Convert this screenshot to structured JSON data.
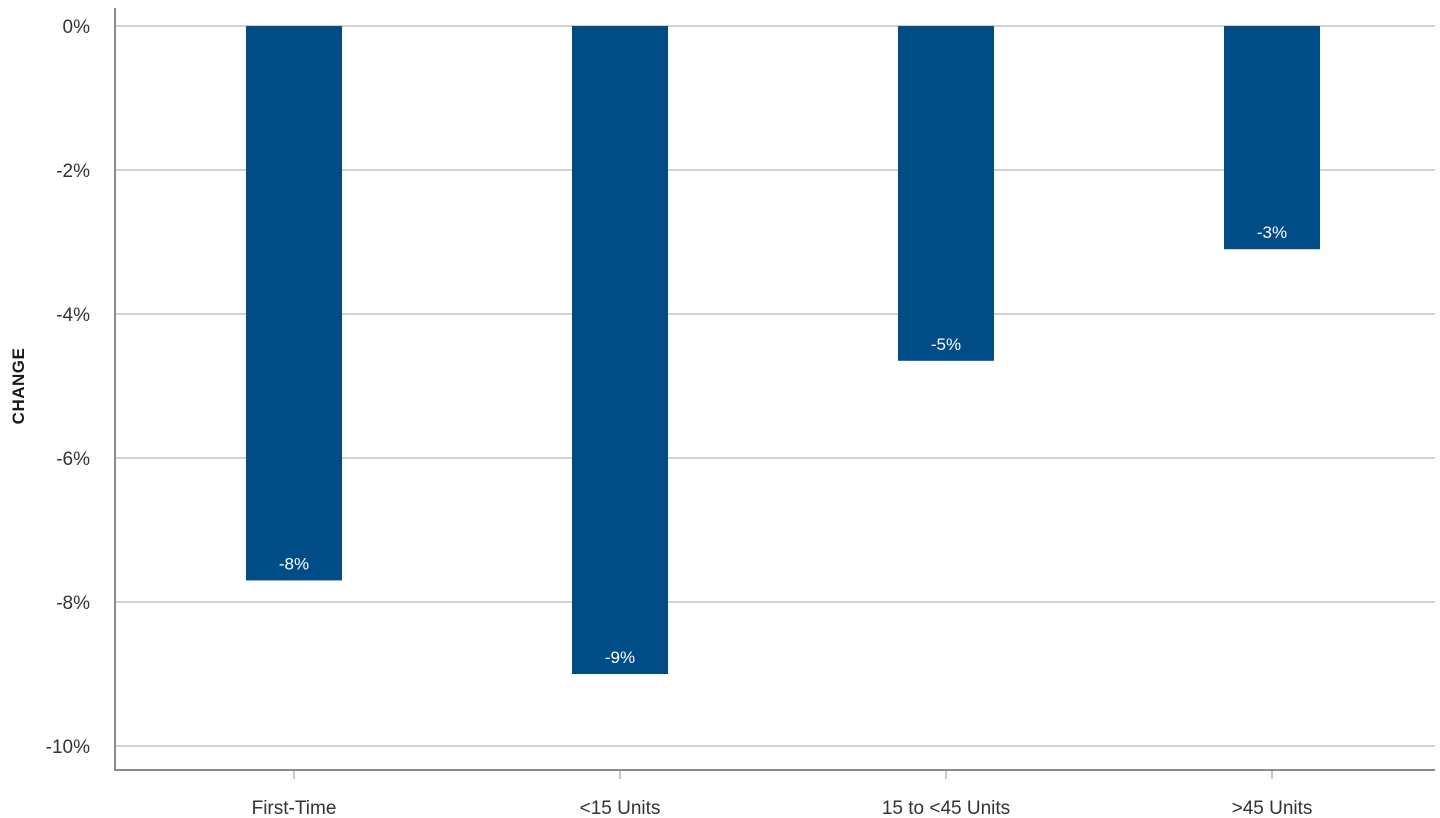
{
  "chart_data": {
    "type": "bar",
    "categories": [
      "First-Time",
      "<15 Units",
      "15 to <45 Units",
      ">45 Units"
    ],
    "values": [
      -7.7,
      -9.0,
      -4.65,
      -3.1
    ],
    "data_labels": [
      "-8%",
      "-9%",
      "-5%",
      "-3%"
    ],
    "title": "",
    "xlabel": "",
    "ylabel": "CHANGE",
    "ylim": [
      -10,
      0
    ],
    "y_ticks": [
      0,
      -2,
      -4,
      -6,
      -8,
      -10
    ],
    "y_tick_labels": [
      "0%",
      "-2%",
      "-4%",
      "-6%",
      "-8%",
      "-10%"
    ],
    "grid": true,
    "legend": "none",
    "bar_color": "#004c86"
  }
}
